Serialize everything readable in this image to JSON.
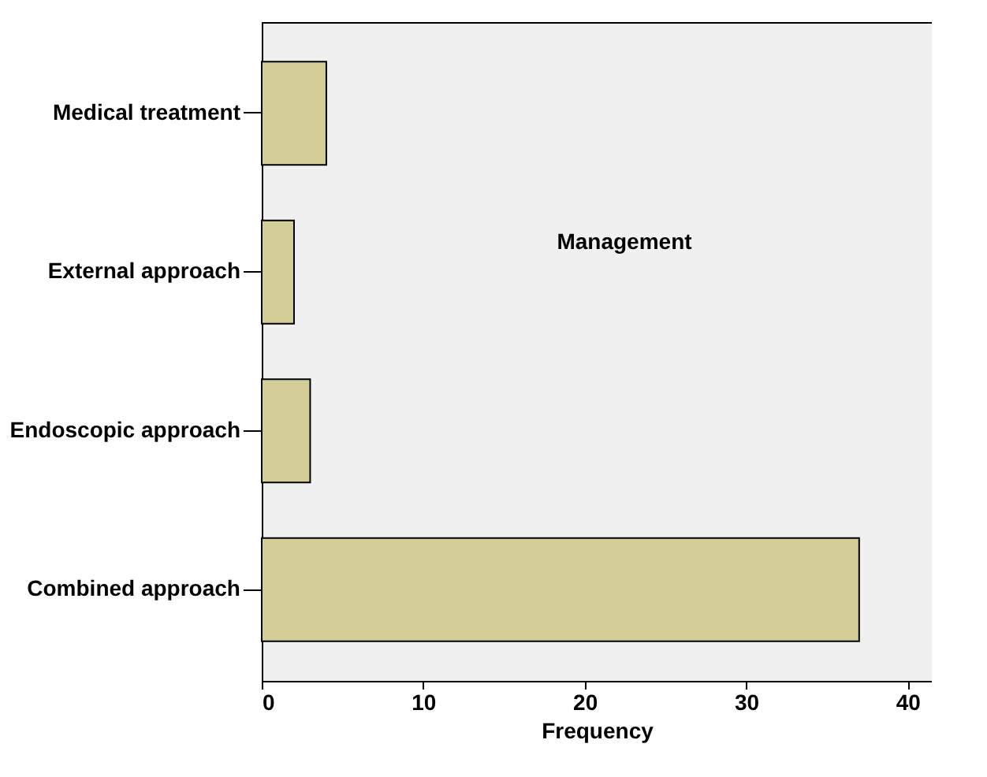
{
  "chart_data": {
    "type": "bar",
    "orientation": "horizontal",
    "title": "Management",
    "xlabel": "Frequency",
    "categories": [
      "Medical treatment",
      "External approach",
      "Endoscopic approach",
      "Combined approach"
    ],
    "values": [
      4,
      2,
      3,
      37
    ],
    "color": "#d3ce97",
    "xlim": [
      0,
      41.5
    ],
    "xticks": [
      0,
      10,
      20,
      30,
      40
    ],
    "grid": false
  }
}
